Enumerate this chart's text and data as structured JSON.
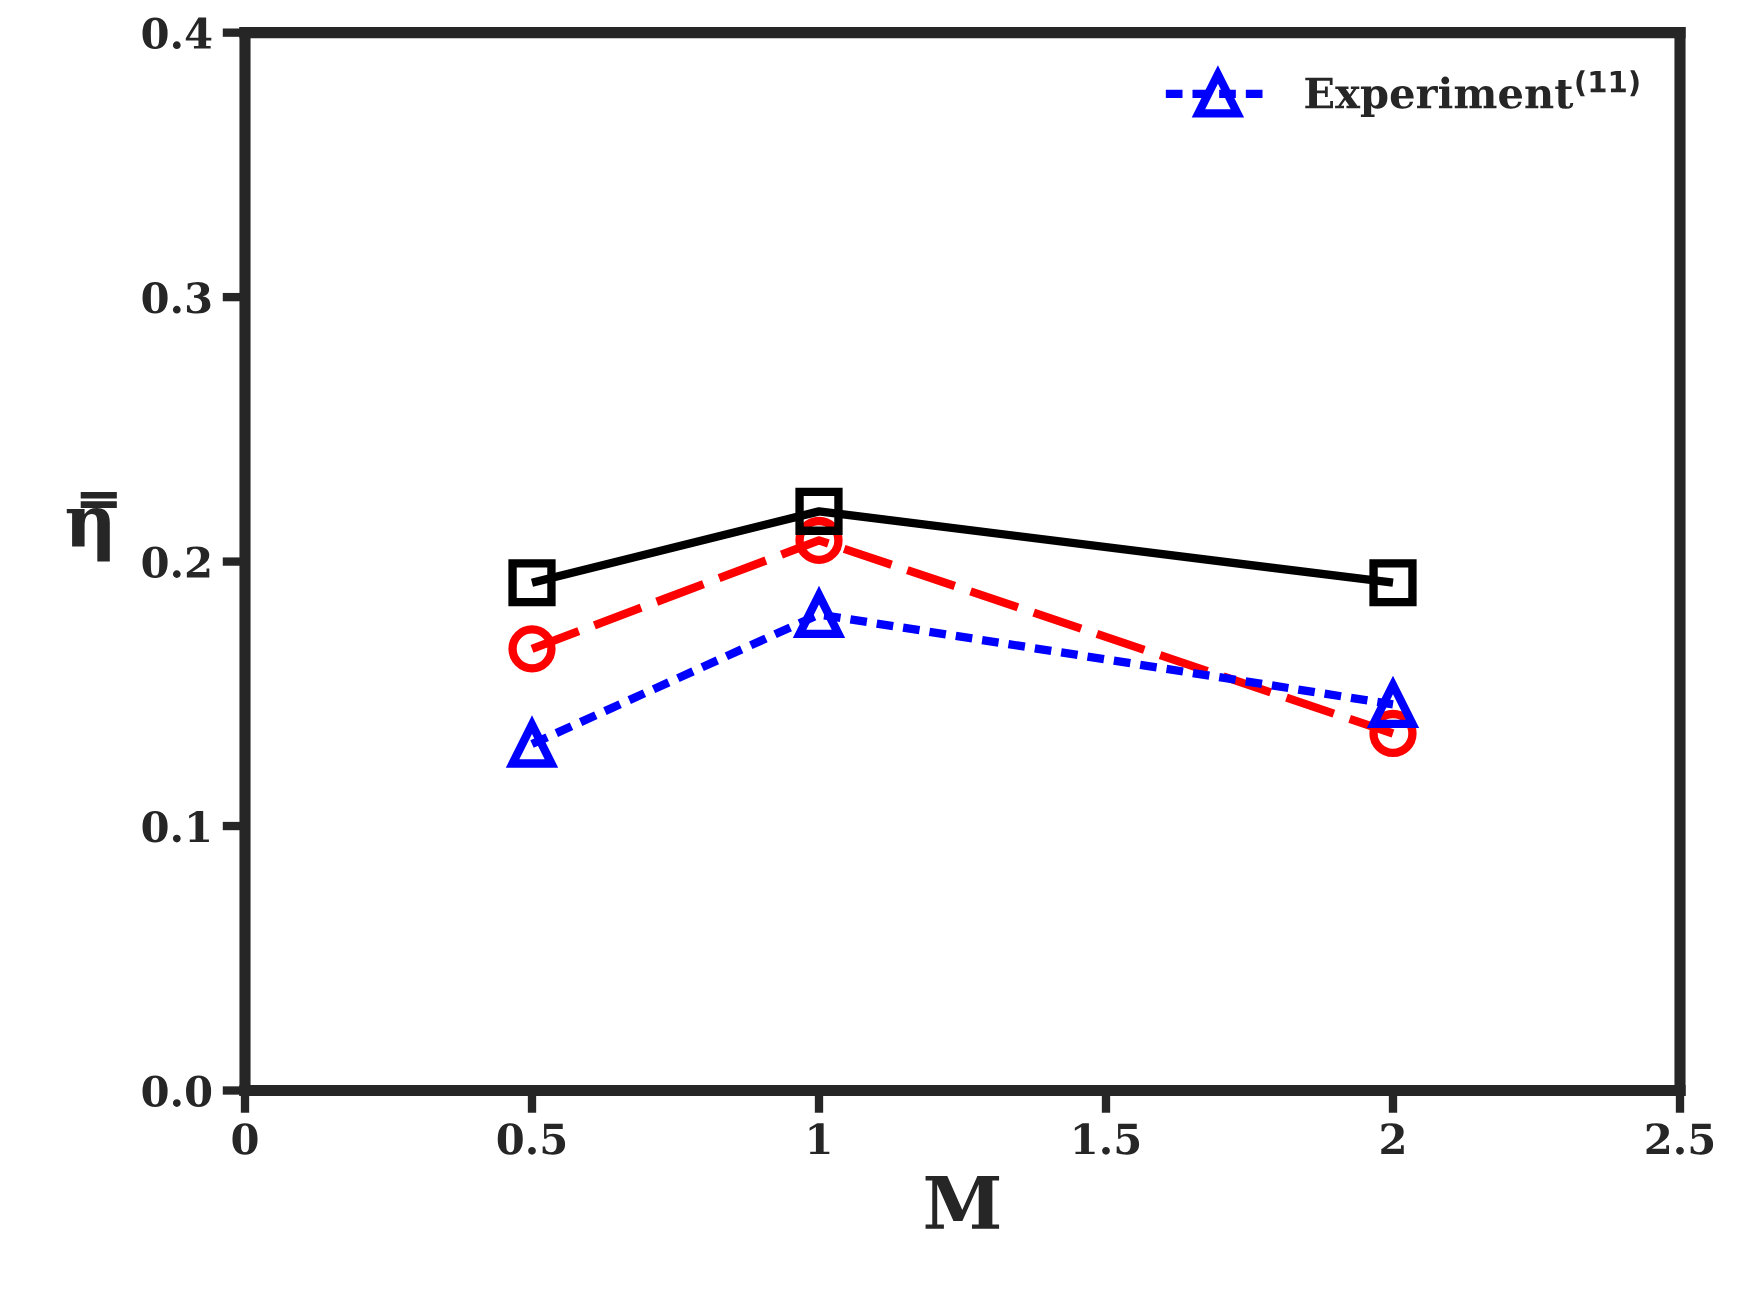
{
  "chart_data": {
    "type": "line",
    "xlabel": "M",
    "ylabel": "η̿",
    "x": [
      0.5,
      1,
      2
    ],
    "series": [
      {
        "color": "#ff0000",
        "values": [
          0.167,
          0.208,
          0.135
        ],
        "marker": "circle",
        "line_style": "dashed"
      },
      {
        "color": "#000000",
        "values": [
          0.192,
          0.219,
          0.192
        ],
        "marker": "square",
        "line_style": "solid"
      },
      {
        "name": "Experiment$^{(11)}$",
        "color": "#0000ff",
        "values": [
          0.131,
          0.18,
          0.146
        ],
        "marker": "triangle",
        "line_style": "dotted"
      }
    ],
    "xlim": [
      0,
      2.5
    ],
    "xticks": [
      0,
      0.5,
      1,
      1.5,
      2,
      2.5
    ],
    "ylim": [
      0,
      0.4
    ],
    "yticks": [
      {
        "value": 0,
        "label": "0.0"
      },
      0.1,
      0.2,
      0.3,
      0.4
    ],
    "grid": false,
    "legend": "top right"
  }
}
